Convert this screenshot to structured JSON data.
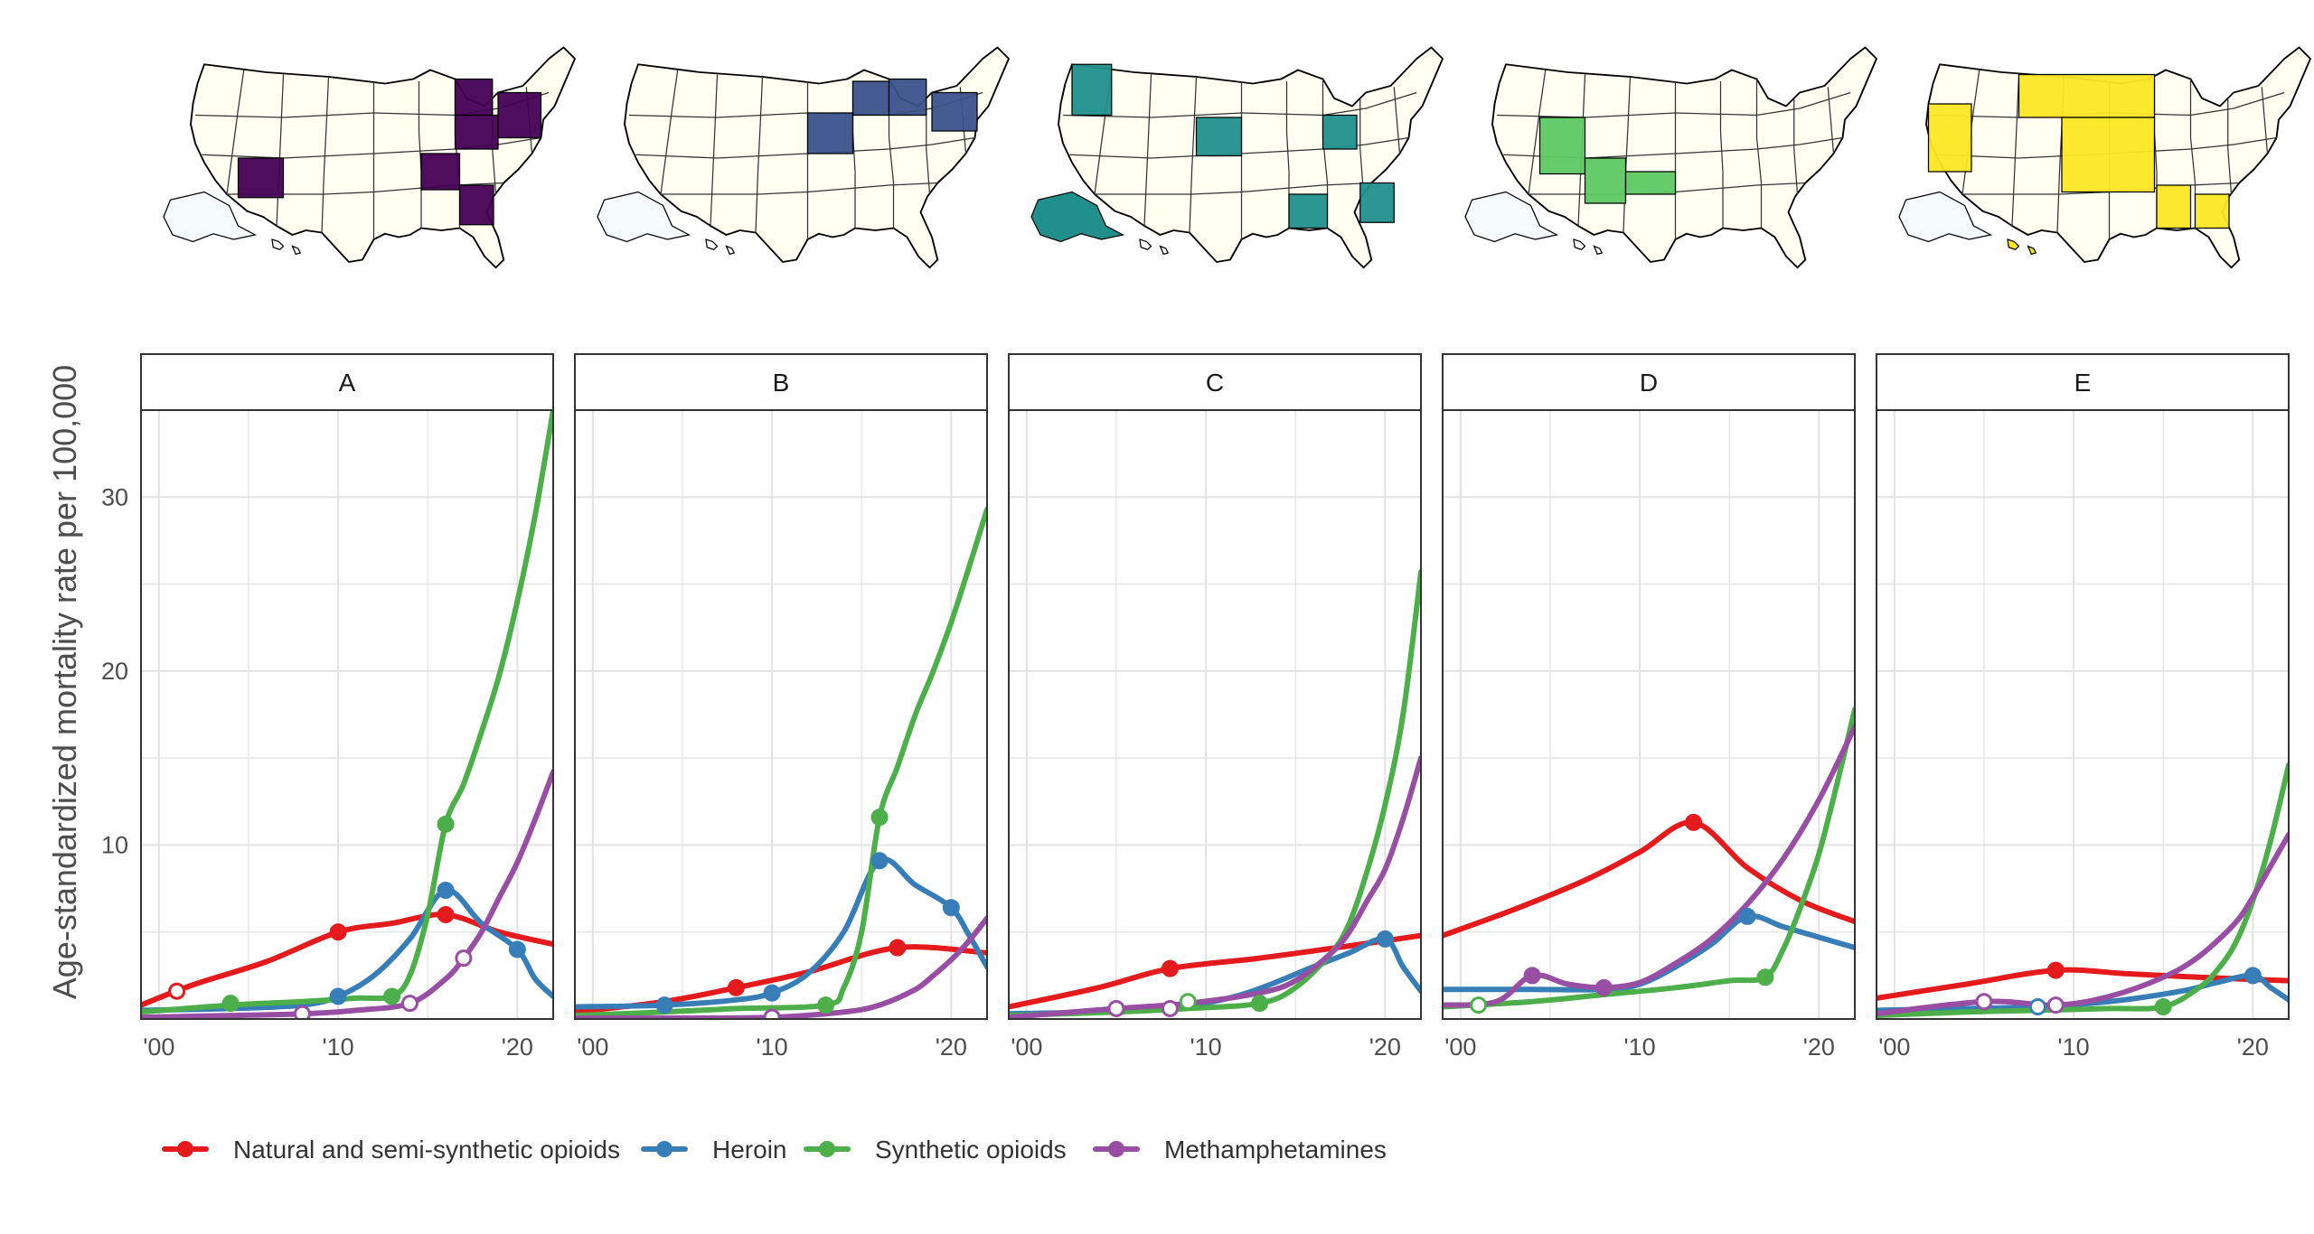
{
  "chart_data": {
    "type": "line",
    "ylabel": "Age-standardized mortality rate per 100,000",
    "xlabel": "",
    "xlim": [
      1999,
      2022
    ],
    "ylim": [
      0,
      35
    ],
    "x_ticks": [
      2000,
      2010,
      2020
    ],
    "x_tick_labels": [
      "'00",
      "'10",
      "'20"
    ],
    "y_ticks": [
      10,
      20,
      30
    ],
    "y_tick_labels": [
      "10",
      "20",
      "30"
    ],
    "grid": true,
    "legend_position": "bottom",
    "legend": [
      {
        "key": "natural",
        "label": "Natural and semi-synthetic opioids",
        "color": "#e41a1c"
      },
      {
        "key": "heroin",
        "label": "Heroin",
        "color": "#377eb8"
      },
      {
        "key": "synthetic",
        "label": "Synthetic opioids",
        "color": "#4daf4a"
      },
      {
        "key": "meth",
        "label": "Methamphetamines",
        "color": "#984ea3"
      }
    ],
    "panels": [
      {
        "label": "A",
        "map_color": "#440154",
        "series": {
          "natural": {
            "x": [
              1999,
              2002,
              2006,
              2010,
              2013,
              2016,
              2019,
              2022
            ],
            "y": [
              0.8,
              2.0,
              3.3,
              5.0,
              5.5,
              6.0,
              5.0,
              4.3
            ],
            "markers": [
              {
                "x": 2001,
                "y": 1.6,
                "filled": false
              },
              {
                "x": 2010,
                "y": 5.0,
                "filled": true
              },
              {
                "x": 2016,
                "y": 6.0,
                "filled": true
              }
            ]
          },
          "heroin": {
            "x": [
              1999,
              2004,
              2008,
              2010,
              2012,
              2014,
              2016,
              2018,
              2020,
              2021,
              2022
            ],
            "y": [
              0.5,
              0.6,
              0.8,
              1.3,
              2.5,
              4.6,
              7.4,
              5.5,
              4.0,
              2.3,
              1.3
            ],
            "markers": [
              {
                "x": 2010,
                "y": 1.3,
                "filled": true
              },
              {
                "x": 2016,
                "y": 7.4,
                "filled": true
              },
              {
                "x": 2020,
                "y": 4.0,
                "filled": true
              }
            ]
          },
          "synthetic": {
            "x": [
              1999,
              2004,
              2008,
              2011,
              2013,
              2014,
              2015,
              2016,
              2017,
              2018,
              2019,
              2020,
              2021,
              2022
            ],
            "y": [
              0.4,
              0.8,
              1.0,
              1.2,
              1.3,
              2.5,
              6.0,
              11.2,
              13.5,
              16.5,
              19.8,
              24.0,
              29.0,
              35.0
            ],
            "markers": [
              {
                "x": 2004,
                "y": 0.9,
                "filled": true
              },
              {
                "x": 2013,
                "y": 1.3,
                "filled": true
              },
              {
                "x": 2016,
                "y": 11.2,
                "filled": true
              }
            ]
          },
          "meth": {
            "x": [
              1999,
              2004,
              2008,
              2011,
              2014,
              2016,
              2017,
              2018,
              2019,
              2020,
              2021,
              2022
            ],
            "y": [
              0.1,
              0.2,
              0.3,
              0.5,
              0.9,
              2.3,
              3.5,
              5.0,
              7.0,
              9.0,
              11.5,
              14.2
            ],
            "markers": [
              {
                "x": 2008,
                "y": 0.3,
                "filled": false
              },
              {
                "x": 2014,
                "y": 0.9,
                "filled": false
              },
              {
                "x": 2017,
                "y": 3.5,
                "filled": false
              }
            ]
          }
        }
      },
      {
        "label": "B",
        "map_color": "#3b528b",
        "series": {
          "natural": {
            "x": [
              1999,
              2004,
              2008,
              2012,
              2017,
              2022
            ],
            "y": [
              0.4,
              1.0,
              1.8,
              2.7,
              4.1,
              3.8
            ],
            "markers": [
              {
                "x": 2008,
                "y": 1.8,
                "filled": true
              },
              {
                "x": 2017,
                "y": 4.1,
                "filled": true
              }
            ]
          },
          "heroin": {
            "x": [
              1999,
              2004,
              2008,
              2010,
              2012,
              2014,
              2016,
              2018,
              2020,
              2021,
              2022
            ],
            "y": [
              0.7,
              0.8,
              1.1,
              1.5,
              2.6,
              5.0,
              9.1,
              7.7,
              6.4,
              4.8,
              3.0
            ],
            "markers": [
              {
                "x": 2004,
                "y": 0.8,
                "filled": true
              },
              {
                "x": 2010,
                "y": 1.5,
                "filled": true
              },
              {
                "x": 2016,
                "y": 9.1,
                "filled": true
              },
              {
                "x": 2020,
                "y": 6.4,
                "filled": true
              }
            ]
          },
          "synthetic": {
            "x": [
              1999,
              2004,
              2008,
              2013,
              2014,
              2015,
              2016,
              2017,
              2018,
              2019,
              2020,
              2021,
              2022
            ],
            "y": [
              0.2,
              0.4,
              0.6,
              0.8,
              1.8,
              5.0,
              11.6,
              14.5,
              17.5,
              20.0,
              22.8,
              26.0,
              29.3
            ],
            "markers": [
              {
                "x": 2013,
                "y": 0.8,
                "filled": true
              },
              {
                "x": 2016,
                "y": 11.6,
                "filled": true
              }
            ]
          },
          "meth": {
            "x": [
              1999,
              2005,
              2010,
              2014,
              2016,
              2018,
              2019,
              2020,
              2021,
              2022
            ],
            "y": [
              0.05,
              0.05,
              0.1,
              0.4,
              0.8,
              1.7,
              2.5,
              3.4,
              4.5,
              5.8
            ],
            "markers": [
              {
                "x": 2010,
                "y": 0.1,
                "filled": false
              }
            ]
          }
        }
      },
      {
        "label": "C",
        "map_color": "#21908d",
        "series": {
          "natural": {
            "x": [
              1999,
              2004,
              2008,
              2013,
              2018,
              2022
            ],
            "y": [
              0.7,
              1.8,
              2.9,
              3.5,
              4.2,
              4.8
            ],
            "markers": [
              {
                "x": 2008,
                "y": 2.9,
                "filled": true
              }
            ]
          },
          "heroin": {
            "x": [
              1999,
              2004,
              2008,
              2012,
              2016,
              2018,
              2020,
              2021,
              2022
            ],
            "y": [
              0.3,
              0.4,
              0.6,
              1.4,
              3.0,
              3.8,
              4.6,
              3.0,
              1.6
            ],
            "markers": [
              {
                "x": 2020,
                "y": 4.6,
                "filled": true
              }
            ]
          },
          "synthetic": {
            "x": [
              1999,
              2005,
              2009,
              2013,
              2015,
              2017,
              2018,
              2019,
              2020,
              2021,
              2022
            ],
            "y": [
              0.2,
              0.4,
              0.6,
              0.9,
              1.8,
              3.8,
              5.5,
              8.5,
              12.3,
              17.5,
              25.7
            ],
            "markers": [
              {
                "x": 2009,
                "y": 1.0,
                "filled": false
              },
              {
                "x": 2013,
                "y": 0.9,
                "filled": true
              }
            ]
          },
          "meth": {
            "x": [
              1999,
              2005,
              2009,
              2013,
              2015,
              2017,
              2018,
              2019,
              2020,
              2021,
              2022
            ],
            "y": [
              0.1,
              0.6,
              0.9,
              1.5,
              2.2,
              3.8,
              5.0,
              6.8,
              8.6,
              11.5,
              15.0
            ],
            "markers": [
              {
                "x": 2005,
                "y": 0.6,
                "filled": false
              },
              {
                "x": 2008,
                "y": 0.6,
                "filled": false
              }
            ]
          }
        }
      },
      {
        "label": "D",
        "map_color": "#5ec962",
        "series": {
          "natural": {
            "x": [
              1999,
              2003,
              2007,
              2010,
              2013,
              2016,
              2019,
              2022
            ],
            "y": [
              4.8,
              6.3,
              8.0,
              9.6,
              11.3,
              8.7,
              6.8,
              5.6
            ],
            "markers": [
              {
                "x": 2013,
                "y": 11.3,
                "filled": true
              }
            ]
          },
          "heroin": {
            "x": [
              1999,
              2004,
              2008,
              2010,
              2012,
              2014,
              2016,
              2018,
              2020,
              2022
            ],
            "y": [
              1.7,
              1.7,
              1.7,
              2.0,
              3.0,
              4.3,
              5.9,
              5.3,
              4.7,
              4.1
            ],
            "markers": [
              {
                "x": 2016,
                "y": 5.9,
                "filled": true
              }
            ]
          },
          "synthetic": {
            "x": [
              1999,
              2004,
              2008,
              2012,
              2015,
              2017,
              2018,
              2019,
              2020,
              2021,
              2022
            ],
            "y": [
              0.7,
              1.0,
              1.4,
              1.8,
              2.2,
              2.4,
              4.0,
              6.5,
              9.5,
              13.5,
              17.8
            ],
            "markers": [
              {
                "x": 2001,
                "y": 0.8,
                "filled": false
              },
              {
                "x": 2017,
                "y": 2.4,
                "filled": true
              }
            ]
          },
          "meth": {
            "x": [
              1999,
              2002,
              2004,
              2006,
              2008,
              2010,
              2012,
              2014,
              2016,
              2018,
              2020,
              2022
            ],
            "y": [
              0.8,
              1.0,
              2.5,
              2.0,
              1.8,
              2.1,
              3.2,
              4.6,
              6.6,
              9.2,
              12.6,
              16.8
            ],
            "markers": [
              {
                "x": 2004,
                "y": 2.5,
                "filled": true
              },
              {
                "x": 2008,
                "y": 1.8,
                "filled": true
              }
            ]
          }
        }
      },
      {
        "label": "E",
        "map_color": "#fde725",
        "series": {
          "natural": {
            "x": [
              1999,
              2004,
              2009,
              2013,
              2017,
              2022
            ],
            "y": [
              1.2,
              2.0,
              2.8,
              2.6,
              2.4,
              2.2
            ],
            "markers": [
              {
                "x": 2009,
                "y": 2.8,
                "filled": true
              }
            ]
          },
          "heroin": {
            "x": [
              1999,
              2004,
              2008,
              2012,
              2016,
              2018,
              2020,
              2021,
              2022
            ],
            "y": [
              0.5,
              0.6,
              0.7,
              1.0,
              1.6,
              2.1,
              2.5,
              1.8,
              1.1
            ],
            "markers": [
              {
                "x": 2008,
                "y": 0.7,
                "filled": false
              },
              {
                "x": 2020,
                "y": 2.5,
                "filled": true
              }
            ]
          },
          "synthetic": {
            "x": [
              1999,
              2004,
              2008,
              2012,
              2015,
              2017,
              2018,
              2019,
              2020,
              2021,
              2022
            ],
            "y": [
              0.2,
              0.4,
              0.5,
              0.6,
              0.7,
              1.8,
              2.8,
              4.3,
              6.8,
              10.3,
              14.6
            ],
            "markers": [
              {
                "x": 2015,
                "y": 0.7,
                "filled": true
              }
            ]
          },
          "meth": {
            "x": [
              1999,
              2005,
              2009,
              2012,
              2015,
              2017,
              2019,
              2020,
              2021,
              2022
            ],
            "y": [
              0.3,
              1.0,
              0.8,
              1.3,
              2.4,
              3.6,
              5.5,
              7.0,
              8.8,
              10.6
            ],
            "markers": [
              {
                "x": 2005,
                "y": 1.0,
                "filled": false
              },
              {
                "x": 2009,
                "y": 0.8,
                "filled": false
              }
            ]
          }
        }
      }
    ]
  }
}
